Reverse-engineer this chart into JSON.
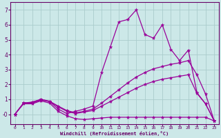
{
  "bg_color": "#cce8e8",
  "line_color": "#990099",
  "grid_color": "#aacccc",
  "xlabel": "Windchill (Refroidissement éolien,°C)",
  "xlabel_color": "#660066",
  "tick_color": "#660066",
  "xlim": [
    -0.5,
    23.5
  ],
  "ylim": [
    -0.65,
    7.5
  ],
  "yticks": [
    0,
    1,
    2,
    3,
    4,
    5,
    6,
    7
  ],
  "ytick_labels": [
    "-0",
    "1",
    "2",
    "3",
    "4",
    "5",
    "6",
    "7"
  ],
  "xticks": [
    0,
    1,
    2,
    3,
    4,
    5,
    6,
    7,
    8,
    9,
    10,
    11,
    12,
    13,
    14,
    15,
    16,
    17,
    18,
    19,
    20,
    21,
    22,
    23
  ],
  "lines": [
    {
      "x": [
        0,
        1,
        2,
        3,
        4,
        5,
        6,
        7,
        8,
        9,
        10,
        11,
        12,
        13,
        14,
        15,
        16,
        17,
        18,
        19,
        20,
        21,
        22,
        23
      ],
      "y": [
        0.0,
        0.7,
        0.7,
        0.9,
        0.75,
        0.2,
        -0.1,
        -0.3,
        -0.35,
        -0.3,
        -0.25,
        -0.2,
        -0.2,
        -0.2,
        -0.2,
        -0.2,
        -0.2,
        -0.2,
        -0.2,
        -0.2,
        -0.2,
        -0.2,
        -0.2,
        -0.45
      ]
    },
    {
      "x": [
        0,
        1,
        2,
        3,
        4,
        5,
        6,
        7,
        8,
        9,
        10,
        11,
        12,
        13,
        14,
        15,
        16,
        17,
        18,
        19,
        20,
        21,
        22,
        23
      ],
      "y": [
        0.0,
        0.75,
        0.8,
        1.0,
        0.85,
        0.5,
        0.2,
        0.05,
        0.15,
        0.25,
        0.55,
        0.85,
        1.15,
        1.45,
        1.75,
        2.0,
        2.2,
        2.35,
        2.45,
        2.55,
        2.65,
        1.4,
        0.7,
        -0.45
      ]
    },
    {
      "x": [
        0,
        1,
        2,
        3,
        4,
        5,
        6,
        7,
        8,
        9,
        10,
        11,
        12,
        13,
        14,
        15,
        16,
        17,
        18,
        19,
        20,
        21,
        22,
        23
      ],
      "y": [
        0.0,
        0.75,
        0.82,
        1.0,
        0.88,
        0.55,
        0.25,
        0.1,
        0.2,
        0.35,
        0.75,
        1.2,
        1.65,
        2.1,
        2.5,
        2.8,
        3.05,
        3.2,
        3.35,
        3.45,
        3.6,
        2.65,
        1.35,
        -0.45
      ]
    },
    {
      "x": [
        0,
        1,
        2,
        3,
        4,
        5,
        6,
        7,
        8,
        9,
        10,
        11,
        12,
        13,
        14,
        15,
        16,
        17,
        18,
        19,
        20,
        21,
        22,
        23
      ],
      "y": [
        0.0,
        0.75,
        0.75,
        0.95,
        0.85,
        0.35,
        0.05,
        0.2,
        0.35,
        0.55,
        2.8,
        4.5,
        6.2,
        6.35,
        7.0,
        5.35,
        5.1,
        6.0,
        4.35,
        3.6,
        4.3,
        1.45,
        0.7,
        -0.45
      ]
    }
  ],
  "marker": "*",
  "markersize": 3.5,
  "linewidth": 0.9
}
